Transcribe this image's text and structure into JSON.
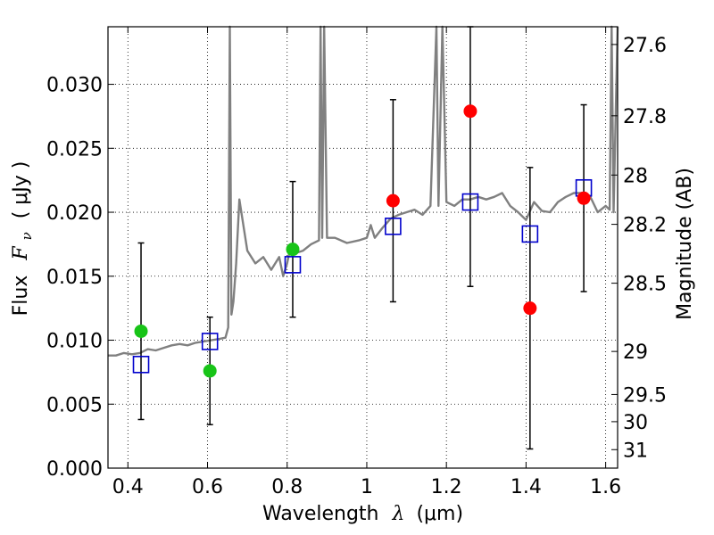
{
  "chart_data": {
    "type": "scatter",
    "xlabel": "Wavelength",
    "xlabel_symbol": "λ",
    "xlabel_unit": "(μm)",
    "ylabel": "Flux",
    "ylabel_symbol": "F",
    "ylabel_subscript": "ν",
    "ylabel_unit": "( μJy )",
    "y2label": "Magnitude (AB)",
    "xlim": [
      0.35,
      1.63
    ],
    "ylim": [
      0.0,
      0.0345
    ],
    "grid": true,
    "x_ticks": [
      0.4,
      0.6,
      0.8,
      1.0,
      1.2,
      1.4,
      1.6
    ],
    "x_tick_labels": [
      "0.4",
      "0.6",
      "0.8",
      "1",
      "1.2",
      "1.4",
      "1.6"
    ],
    "y_ticks": [
      0.0,
      0.005,
      0.01,
      0.015,
      0.02,
      0.025,
      0.03
    ],
    "y_tick_labels": [
      "0.000",
      "0.005",
      "0.010",
      "0.015",
      "0.020",
      "0.025",
      "0.030"
    ],
    "right_ticks": [
      {
        "mag": 27.6,
        "label": "27.6"
      },
      {
        "mag": 27.8,
        "label": "27.8"
      },
      {
        "mag": 28.0,
        "label": "28"
      },
      {
        "mag": 28.2,
        "label": "28.2"
      },
      {
        "mag": 28.5,
        "label": "28.5"
      },
      {
        "mag": 29.0,
        "label": "29"
      },
      {
        "mag": 29.5,
        "label": "29.5"
      },
      {
        "mag": 30.0,
        "label": "30"
      },
      {
        "mag": 31.0,
        "label": "31"
      }
    ],
    "series": [
      {
        "name": "observed_flux",
        "marker": "circle",
        "points": [
          {
            "x": 0.433,
            "y": 0.0107,
            "err": 0.0069,
            "color": "#18c418"
          },
          {
            "x": 0.606,
            "y": 0.0076,
            "err": 0.0042,
            "color": "#18c418"
          },
          {
            "x": 0.814,
            "y": 0.0171,
            "err": 0.0053,
            "color": "#18c418"
          },
          {
            "x": 1.066,
            "y": 0.0209,
            "err": 0.0079,
            "color": "#ff0000"
          },
          {
            "x": 1.26,
            "y": 0.0279,
            "err": 0.0137,
            "color": "#ff0000"
          },
          {
            "x": 1.41,
            "y": 0.0125,
            "err": 0.011,
            "color": "#ff0000"
          },
          {
            "x": 1.545,
            "y": 0.0211,
            "err": 0.0073,
            "color": "#ff0000"
          }
        ]
      },
      {
        "name": "model_synthetic_photometry",
        "marker": "square",
        "color": "#0000cc",
        "points": [
          {
            "x": 0.433,
            "y": 0.0081
          },
          {
            "x": 0.606,
            "y": 0.0099
          },
          {
            "x": 0.814,
            "y": 0.0159
          },
          {
            "x": 1.066,
            "y": 0.0189
          },
          {
            "x": 1.26,
            "y": 0.0208
          },
          {
            "x": 1.41,
            "y": 0.0183
          },
          {
            "x": 1.545,
            "y": 0.0219
          }
        ]
      },
      {
        "name": "model_spectrum",
        "type": "line",
        "color": "#808080",
        "x": [
          0.35,
          0.37,
          0.39,
          0.41,
          0.43,
          0.45,
          0.47,
          0.49,
          0.51,
          0.53,
          0.55,
          0.57,
          0.59,
          0.61,
          0.63,
          0.645,
          0.652,
          0.656,
          0.66,
          0.665,
          0.672,
          0.68,
          0.7,
          0.72,
          0.74,
          0.76,
          0.78,
          0.79,
          0.8,
          0.81,
          0.82,
          0.84,
          0.86,
          0.88,
          0.884,
          0.888,
          0.893,
          0.9,
          0.92,
          0.95,
          0.98,
          1.0,
          1.01,
          1.02,
          1.04,
          1.06,
          1.08,
          1.1,
          1.12,
          1.14,
          1.16,
          1.175,
          1.18,
          1.19,
          1.2,
          1.22,
          1.24,
          1.26,
          1.28,
          1.3,
          1.32,
          1.34,
          1.36,
          1.38,
          1.4,
          1.42,
          1.44,
          1.46,
          1.48,
          1.5,
          1.52,
          1.54,
          1.56,
          1.58,
          1.6,
          1.61,
          1.615,
          1.62,
          1.63
        ],
        "y": [
          0.0088,
          0.0088,
          0.009,
          0.0089,
          0.009,
          0.0093,
          0.0092,
          0.0094,
          0.0096,
          0.0097,
          0.0096,
          0.0098,
          0.0099,
          0.01,
          0.0101,
          0.0102,
          0.011,
          0.0345,
          0.012,
          0.013,
          0.016,
          0.021,
          0.017,
          0.016,
          0.0165,
          0.0155,
          0.0165,
          0.015,
          0.016,
          0.0175,
          0.0168,
          0.017,
          0.0175,
          0.0178,
          0.0345,
          0.018,
          0.0345,
          0.018,
          0.018,
          0.0176,
          0.0178,
          0.018,
          0.019,
          0.018,
          0.0188,
          0.0195,
          0.0198,
          0.02,
          0.0202,
          0.0198,
          0.0205,
          0.0345,
          0.0205,
          0.0345,
          0.0208,
          0.0205,
          0.021,
          0.021,
          0.0212,
          0.021,
          0.0212,
          0.0215,
          0.0205,
          0.02,
          0.0194,
          0.0208,
          0.0201,
          0.02,
          0.0208,
          0.0212,
          0.0215,
          0.0215,
          0.0213,
          0.02,
          0.0205,
          0.0202,
          0.0345,
          0.02,
          0.0345
        ]
      }
    ]
  }
}
